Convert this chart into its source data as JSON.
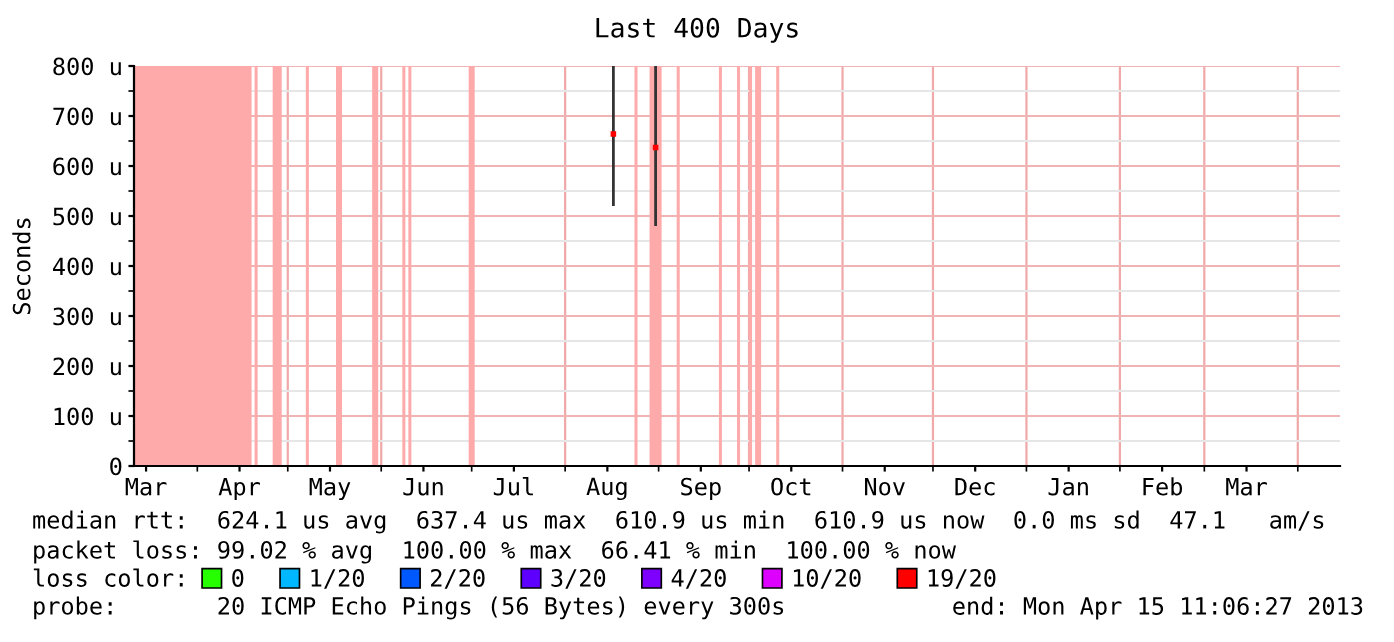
{
  "chart_data": {
    "type": "scatter",
    "title": "Last 400 Days",
    "ylabel": "Seconds",
    "xlim": [
      "2012-03-11",
      "2013-04-15"
    ],
    "xticks": [
      {
        "value": "2012-03-15",
        "label": "Mar"
      },
      {
        "value": "2012-04-01",
        "label": null
      },
      {
        "value": "2012-04-15",
        "label": "Apr"
      },
      {
        "value": "2012-05-01",
        "label": null
      },
      {
        "value": "2012-05-15",
        "label": "May"
      },
      {
        "value": "2012-06-01",
        "label": null
      },
      {
        "value": "2012-06-15",
        "label": "Jun"
      },
      {
        "value": "2012-07-01",
        "label": null
      },
      {
        "value": "2012-07-15",
        "label": "Jul"
      },
      {
        "value": "2012-08-01",
        "label": null
      },
      {
        "value": "2012-08-15",
        "label": "Aug"
      },
      {
        "value": "2012-09-01",
        "label": null
      },
      {
        "value": "2012-09-15",
        "label": "Sep"
      },
      {
        "value": "2012-10-01",
        "label": null
      },
      {
        "value": "2012-10-15",
        "label": "Oct"
      },
      {
        "value": "2012-11-01",
        "label": null
      },
      {
        "value": "2012-11-15",
        "label": "Nov"
      },
      {
        "value": "2012-12-01",
        "label": null
      },
      {
        "value": "2012-12-15",
        "label": "Dec"
      },
      {
        "value": "2013-01-01",
        "label": null
      },
      {
        "value": "2013-01-15",
        "label": "Jan"
      },
      {
        "value": "2013-02-01",
        "label": null
      },
      {
        "value": "2013-02-15",
        "label": "Feb"
      },
      {
        "value": "2013-03-01",
        "label": null
      },
      {
        "value": "2013-03-15",
        "label": "Mar"
      },
      {
        "value": "2013-04-01",
        "label": null
      }
    ],
    "ylim": [
      0,
      800
    ],
    "yticks": [
      0,
      {
        "value": 50,
        "label": null
      },
      {
        "value": 100,
        "label": "100 u"
      },
      {
        "value": 150,
        "label": null
      },
      {
        "value": 200,
        "label": "200 u"
      },
      {
        "value": 250,
        "label": null
      },
      {
        "value": 300,
        "label": "300 u"
      },
      {
        "value": 350,
        "label": null
      },
      {
        "value": 400,
        "label": "400 u"
      },
      {
        "value": 450,
        "label": null
      },
      {
        "value": 500,
        "label": "500 u"
      },
      {
        "value": 550,
        "label": null
      },
      {
        "value": 600,
        "label": "600 u"
      },
      {
        "value": 650,
        "label": null
      },
      {
        "value": 700,
        "label": "700 u"
      },
      {
        "value": 750,
        "label": null
      },
      {
        "value": 800,
        "label": "800 u"
      }
    ],
    "grid": true,
    "legend": "bottom",
    "legend_title": "loss color:",
    "series": [
      {
        "name": "0",
        "color": "#26ff00"
      },
      {
        "name": "1/20",
        "color": "#00b8ff"
      },
      {
        "name": "2/20",
        "color": "#0059ff"
      },
      {
        "name": "3/20",
        "color": "#5e00ff"
      },
      {
        "name": "4/20",
        "color": "#7e00ff"
      },
      {
        "name": "10/20",
        "color": "#dd00ff"
      },
      {
        "name": "19/20",
        "color": "#ff0000",
        "x": [
          "2012-08-17",
          "2012-08-31"
        ],
        "values": [
          664,
          637
        ],
        "errors": [
          [
            520,
            800
          ],
          [
            480,
            800
          ]
        ]
      }
    ],
    "bands": [
      {
        "axis": "x",
        "from": "2012-03-11",
        "to": "2012-04-19",
        "color": "#ffaaaa"
      },
      {
        "axis": "x",
        "from": "2012-04-20",
        "to": "2012-04-21",
        "color": "#ffaaaa"
      },
      {
        "axis": "x",
        "from": "2012-04-26",
        "to": "2012-04-29",
        "color": "#ffaaaa"
      },
      {
        "axis": "x",
        "from": "2012-05-07",
        "to": "2012-05-08",
        "color": "#ffaaaa"
      },
      {
        "axis": "x",
        "from": "2012-05-17",
        "to": "2012-05-19",
        "color": "#ffaaaa"
      },
      {
        "axis": "x",
        "from": "2012-05-29",
        "to": "2012-05-31",
        "color": "#ffaaaa"
      },
      {
        "axis": "x",
        "from": "2012-06-08",
        "to": "2012-06-09",
        "color": "#ffaaaa"
      },
      {
        "axis": "x",
        "from": "2012-06-10",
        "to": "2012-06-11",
        "color": "#ffaaaa"
      },
      {
        "axis": "x",
        "from": "2012-06-30",
        "to": "2012-07-02",
        "color": "#ffaaaa"
      },
      {
        "axis": "x",
        "from": "2012-08-24",
        "to": "2012-08-25",
        "color": "#ffaaaa"
      },
      {
        "axis": "x",
        "from": "2012-08-29",
        "to": "2012-09-02",
        "color": "#ffaaaa"
      },
      {
        "axis": "x",
        "from": "2012-09-07",
        "to": "2012-09-08",
        "color": "#ffaaaa"
      },
      {
        "axis": "x",
        "from": "2012-09-21",
        "to": "2012-09-22",
        "color": "#ffaaaa"
      },
      {
        "axis": "x",
        "from": "2012-09-27",
        "to": "2012-09-28",
        "color": "#ffaaaa"
      },
      {
        "axis": "x",
        "from": "2012-10-01",
        "to": "2012-10-02",
        "color": "#ffaaaa"
      },
      {
        "axis": "x",
        "from": "2012-10-03",
        "to": "2012-10-05",
        "color": "#ffaaaa"
      },
      {
        "axis": "x",
        "from": "2012-10-10",
        "to": "2012-10-11",
        "color": "#ffaaaa"
      }
    ],
    "annotations": [
      "median rtt:  624.1 us avg  637.4 us max  610.9 us min  610.9 us now  0.0 ms sd  47.1   am/s",
      "packet loss: 99.02 % avg  100.00 % max  66.41 % min  100.00 % now",
      "probe:       20 ICMP Echo Pings (56 Bytes) every 300s",
      "end: Mon Apr 15 11:06:27 2013"
    ]
  }
}
